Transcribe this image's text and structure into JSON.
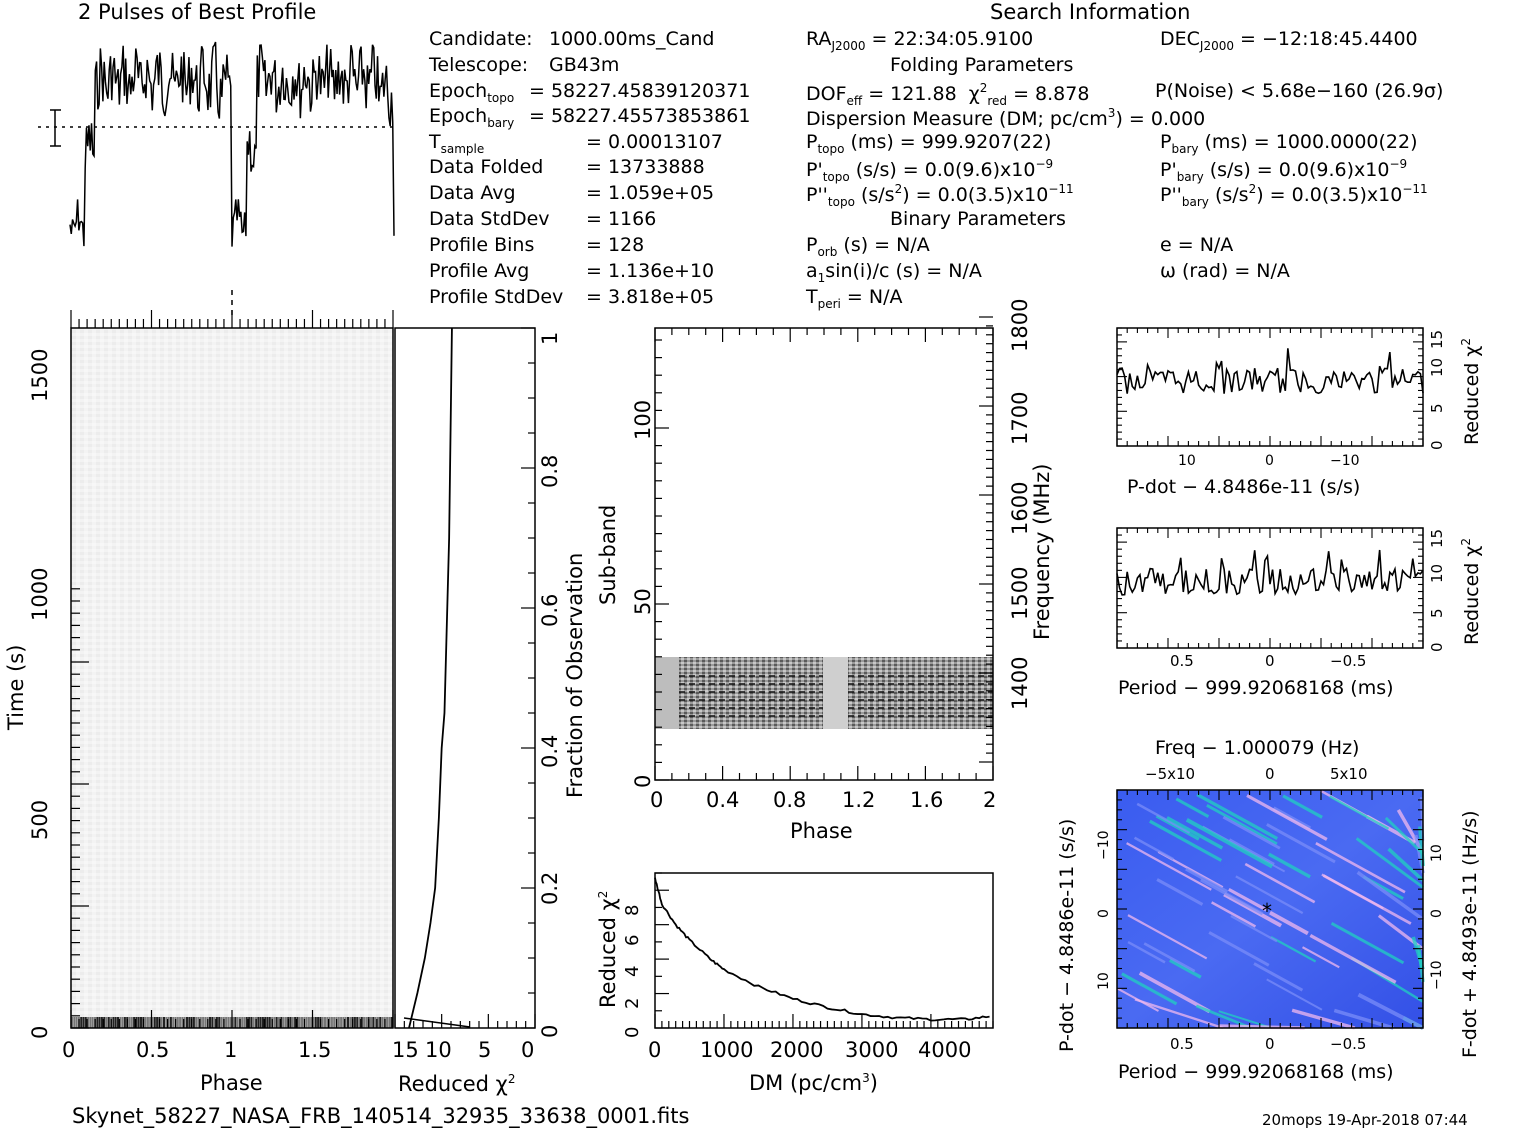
{
  "profile_title": "2 Pulses of Best Profile",
  "search_title": "Search Information",
  "info_left": [
    {
      "k": "Candidate:",
      "v": "1000.00ms_Cand"
    },
    {
      "k": "Telescope:",
      "v": "GB43m"
    },
    {
      "k": "Epoch",
      "sub": "topo",
      "v": "= 58227.45839120371"
    },
    {
      "k": "Epoch",
      "sub": "bary",
      "v": "= 58227.45573853861"
    },
    {
      "k": "T",
      "sub": "sample",
      "v": "=     0.00013107"
    },
    {
      "k": "Data Folded",
      "v": "=    13733888"
    },
    {
      "k": "Data Avg",
      "v": "=    1.059e+05"
    },
    {
      "k": "Data StdDev",
      "v": "=    1166"
    },
    {
      "k": "Profile Bins",
      "v": "=    128"
    },
    {
      "k": "Profile Avg",
      "v": "=    1.136e+10"
    },
    {
      "k": "Profile StdDev",
      "v": "=    3.818e+05"
    }
  ],
  "search": {
    "ra": "RA",
    "ra_sub": "J2000",
    "ra_val": " = 22:34:05.9100",
    "dec": "DEC",
    "dec_sub": "J2000",
    "dec_val": " = −12:18:45.4400",
    "folding_title": "Folding Parameters",
    "dof": "DOF",
    "dof_sub": "eff",
    "dof_val": " = 121.88",
    "chi": "χ",
    "chi_sup": "2",
    "chi_sub": "red",
    "chi_val": " = 8.878",
    "pnoise": "P(Noise) < 5.68e−160   (26.9σ)",
    "dm_label": "Dispersion Measure (DM; pc/cm",
    "dm_sup": "3",
    "dm_val": ") = 0.000",
    "ptopo": "P",
    "ptopo_sub": "topo",
    "ptopo_val": " (ms) =  999.9207(22)",
    "pbary": "P",
    "pbary_sub": "bary",
    "pbary_val": " (ms) =  1000.0000(22)",
    "pdtopo": "P'",
    "pdtopo_sub": "topo",
    "pdtopo_val": " (s/s) = 0.0(9.6)x10",
    "pdtopo_exp": "−9",
    "pdbary": "P'",
    "pdbary_sub": "bary",
    "pdbary_val": " (s/s) = 0.0(9.6)x10",
    "pdbary_exp": "−9",
    "pddtopo": "P''",
    "pddtopo_sub": "topo",
    "pddtopo_val": " (s/s",
    "pddtopo_sup": "2",
    "pddtopo_val2": ") = 0.0(3.5)x10",
    "pddtopo_exp": "−11",
    "pddbary": "P''",
    "pddbary_sub": "bary",
    "pddbary_val": " (s/s",
    "pddbary_sup": "2",
    "pddbary_val2": ") = 0.0(3.5)x10",
    "pddbary_exp": "−11",
    "binary_title": "Binary Parameters",
    "porb": "P",
    "porb_sub": "orb",
    "porb_val": " (s) = N/A",
    "e": "e = N/A",
    "a1": "a",
    "a1_sub": "1",
    "a1_val": "sin(i)/c (s) = N/A",
    "omega": "ω (rad) = N/A",
    "tperi": "T",
    "tperi_sub": "peri",
    "tperi_val": " = N/A"
  },
  "axes": {
    "time_label": "Time (s)",
    "phase_label": "Phase",
    "redchi_label": "Reduced χ",
    "redchi_sup": "2",
    "fraction_label": "Fraction of Observation",
    "subband_label": "Sub-band",
    "freq_label": "Frequency (MHz)",
    "dm_xlabel": "DM (pc/cm",
    "dm_xsup": "3",
    "dm_xclose": ")",
    "pdot_xlabel": "P-dot − 4.8486e-11 (s/s)",
    "period_xlabel": "Period − 999.92068168 (ms)",
    "freq_top_label": "Freq − 1.000079 (Hz)",
    "pdot_ylabel": "P-dot − 4.8486e-11 (s/s)",
    "fdot_ylabel": "F-dot + 4.8493e-11 (Hz/s)"
  },
  "ticks": {
    "time_y": [
      "0",
      "500",
      "1000",
      "1500"
    ],
    "phase_x": [
      "0",
      "0.5",
      "1",
      "1.5"
    ],
    "redchi_x": [
      "15",
      "10",
      "5",
      "0"
    ],
    "fraction_y": [
      "0",
      "0.2",
      "0.4",
      "0.6",
      "0.8",
      "1"
    ],
    "subband_y": [
      "0",
      "50",
      "100"
    ],
    "subphase_x": [
      "0",
      "0.4",
      "0.8",
      "1.2",
      "1.6",
      "2"
    ],
    "freq_y": [
      "1400",
      "1500",
      "1600",
      "1700",
      "1800"
    ],
    "dm_x": [
      "0",
      "1000",
      "2000",
      "3000",
      "4000"
    ],
    "dmchi_y": [
      "0",
      "2",
      "4",
      "6",
      "8"
    ],
    "pdotchi_y": [
      "0",
      "5",
      "10",
      "15"
    ],
    "pdot_x": [
      "10",
      "0",
      "−10"
    ],
    "pdot_x_exp": "−6",
    "perchi_y": [
      "0",
      "5",
      "10",
      "15"
    ],
    "period_x": [
      "0.5",
      "0",
      "−0.5"
    ],
    "freq_top_x": [
      "−5x10",
      "0",
      "5x10"
    ],
    "freq_top_exp": "−4",
    "pdot2_y": [
      "−10",
      "0",
      "10"
    ],
    "fdot_y": [
      "10",
      "0",
      "−10"
    ],
    "tick_exp": "−6"
  },
  "footer": {
    "filename": "Skynet_58227_NASA_FRB_140514_32935_33638_0001.fits",
    "stamp": "20mops 19-Apr-2018 07:44"
  },
  "colors": {
    "ink": "#000000",
    "grid_bg": "#3f5cf0",
    "accent_cyan": "#20d0c0",
    "accent_pink": "#f4b8e8"
  },
  "chart_data": [
    {
      "type": "line",
      "name": "pulse profile",
      "x_range": [
        0,
        2
      ],
      "values_note": "two pulses, low near phase 0 and 1"
    },
    {
      "type": "heatmap",
      "name": "time vs phase",
      "xlim": [
        0,
        2
      ],
      "ylim": [
        0,
        1800
      ]
    },
    {
      "type": "line",
      "name": "reduced chi2 vs fraction",
      "xlim": [
        15,
        0
      ],
      "ylim": [
        0,
        1
      ],
      "x": [
        13.5,
        12.6,
        11.8,
        11.2,
        10.7,
        10.3,
        10.0,
        9.7,
        9.6,
        9.5,
        9.4,
        9.2,
        9.1,
        9.0,
        8.9
      ],
      "y": [
        0.0,
        0.05,
        0.1,
        0.15,
        0.2,
        0.3,
        0.4,
        0.45,
        0.5,
        0.55,
        0.6,
        0.7,
        0.8,
        0.9,
        1.0
      ]
    },
    {
      "type": "heatmap",
      "name": "sub-band vs phase",
      "xlim": [
        0,
        2
      ],
      "ylim": [
        0,
        128
      ],
      "band": [
        15,
        35
      ]
    },
    {
      "type": "line",
      "name": "reduced chi2 vs DM",
      "xlabel": "DM (pc/cm3)",
      "xlim": [
        0,
        4900
      ],
      "ylim": [
        0,
        9
      ],
      "x": [
        0,
        100,
        300,
        500,
        800,
        1000,
        1500,
        2000,
        2500,
        3000,
        3500,
        4000,
        4500,
        4900
      ],
      "y": [
        8.7,
        7.2,
        6.0,
        5.1,
        4.0,
        3.4,
        2.4,
        1.7,
        1.2,
        0.8,
        0.6,
        0.5,
        0.5,
        0.7
      ]
    },
    {
      "type": "line",
      "name": "reduced chi2 vs P-dot",
      "ylim": [
        0,
        17
      ]
    },
    {
      "type": "line",
      "name": "reduced chi2 vs period",
      "ylim": [
        0,
        15
      ]
    },
    {
      "type": "heatmap",
      "name": "P-dot vs period",
      "best": [
        0,
        0
      ]
    }
  ]
}
